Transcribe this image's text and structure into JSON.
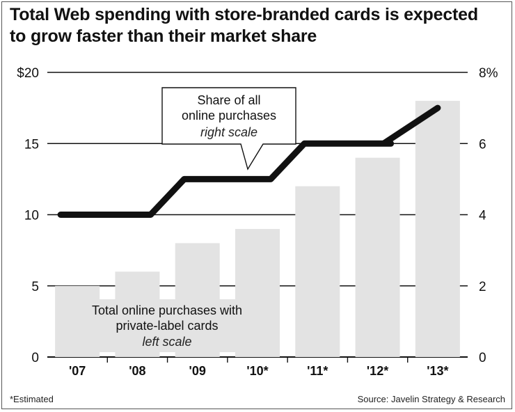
{
  "chart_data": {
    "type": "bar",
    "title_lines": [
      "Total Web spending with store-branded cards is expected",
      "to grow faster than their market share"
    ],
    "categories": [
      "'07",
      "'08",
      "'09",
      "'10*",
      "'11*",
      "'12*",
      "'13*"
    ],
    "series": [
      {
        "name": "Total online purchases with private-label cards",
        "type": "bar",
        "axis": "left",
        "values": [
          5,
          6,
          8,
          9,
          12,
          14,
          18
        ],
        "color": "#e3e3e3"
      },
      {
        "name": "Share of all online purchases",
        "type": "line",
        "axis": "right",
        "values": [
          4,
          4,
          5,
          5,
          6,
          6,
          7
        ],
        "color": "#111111"
      }
    ],
    "left_axis": {
      "ylim": [
        0,
        20
      ],
      "tick_values": [
        0,
        5,
        10,
        15,
        20
      ],
      "tick_labels": [
        "0",
        "5",
        "10",
        "15",
        "$20"
      ]
    },
    "right_axis": {
      "ylim": [
        0,
        8
      ],
      "tick_values": [
        0,
        2,
        4,
        6,
        8
      ],
      "tick_labels": [
        "0",
        "2",
        "4",
        "6",
        "8%"
      ]
    },
    "annotations": {
      "line_label": [
        "Share of all",
        "online purchases"
      ],
      "line_scale": "right scale",
      "bar_label": [
        "Total online purchases with",
        "private-label cards"
      ],
      "bar_scale": "left scale"
    },
    "footnote": "*Estimated",
    "source": "Source: Javelin Strategy & Research"
  }
}
